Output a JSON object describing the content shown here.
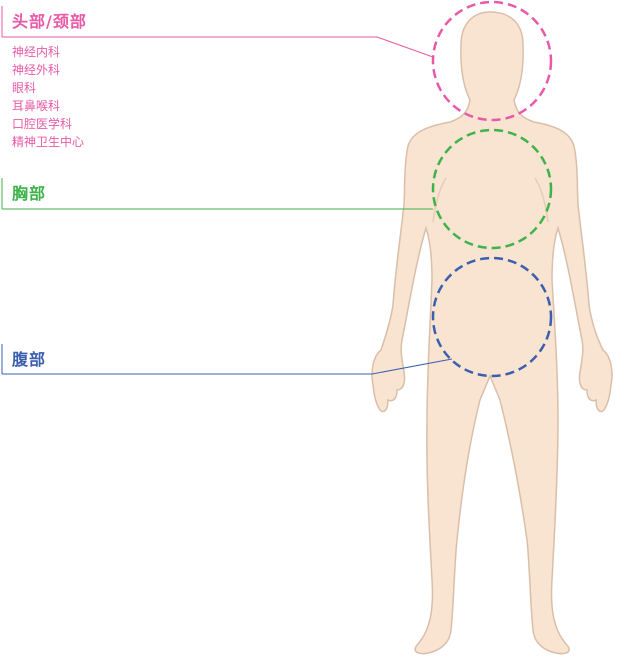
{
  "colors": {
    "head": "#e85aa7",
    "chest": "#3db34a",
    "abdomen": "#3a5faf",
    "body_fill": "#f9e3d1",
    "body_stroke": "#d9bfa9"
  },
  "regions": {
    "head": {
      "title": "头部/颈部",
      "departments": [
        "神经内科",
        "神经外科",
        "眼科",
        "耳鼻喉科",
        "口腔医学科",
        "精神卫生中心"
      ]
    },
    "chest": {
      "title": "胸部"
    },
    "abdomen": {
      "title": "腹部"
    }
  }
}
